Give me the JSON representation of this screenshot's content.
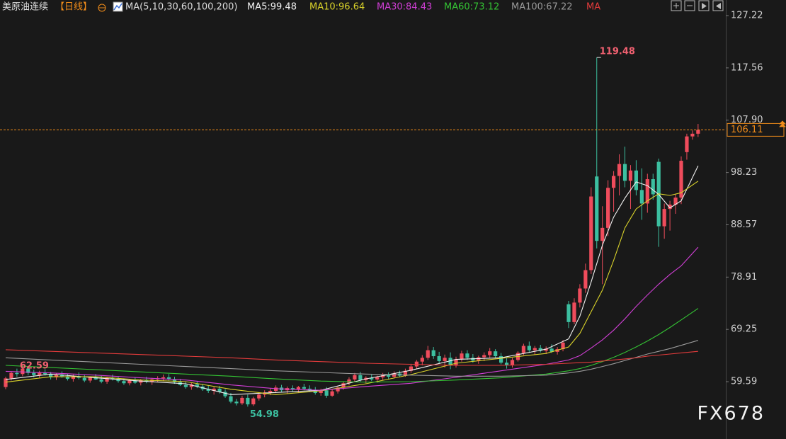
{
  "chart_data": {
    "type": "candlestick",
    "title": "美原油连续",
    "period": "【日线】",
    "ma_params": "MA(5,10,30,60,100,200)",
    "watermark": "FX678",
    "up_color": "#ef4c5c",
    "down_color": "#3cbfa0",
    "ylim": [
      49.0,
      130.1
    ],
    "yticks": [
      127.22,
      117.56,
      {
        "value": 107.9,
        "label": "107.90"
      },
      98.23,
      88.57,
      78.91,
      69.25,
      59.59
    ],
    "candles": [
      [
        58.6,
        60.5,
        58.2,
        60.2
      ],
      [
        60.2,
        61.5,
        59.8,
        61.2
      ],
      [
        61.2,
        62.0,
        60.5,
        61.0
      ],
      [
        61.0,
        62.59,
        60.6,
        62.0
      ],
      [
        62.0,
        62.3,
        60.8,
        61.2
      ],
      [
        61.2,
        61.8,
        60.4,
        60.8
      ],
      [
        60.8,
        61.6,
        60.2,
        61.3
      ],
      [
        61.3,
        61.9,
        60.7,
        61.0
      ],
      [
        61.0,
        61.4,
        60.0,
        60.4
      ],
      [
        60.4,
        61.2,
        59.9,
        60.9
      ],
      [
        60.9,
        61.5,
        60.3,
        60.6
      ],
      [
        60.6,
        61.0,
        59.8,
        60.1
      ],
      [
        60.1,
        60.9,
        59.6,
        60.6
      ],
      [
        60.6,
        61.3,
        60.0,
        60.3
      ],
      [
        60.3,
        60.8,
        59.5,
        59.8
      ],
      [
        59.8,
        60.6,
        59.4,
        60.4
      ],
      [
        60.4,
        61.0,
        59.9,
        60.0
      ],
      [
        60.0,
        60.7,
        59.3,
        59.6
      ],
      [
        59.6,
        60.5,
        59.2,
        60.3
      ],
      [
        60.3,
        60.9,
        59.8,
        60.1
      ],
      [
        60.1,
        60.6,
        59.4,
        59.7
      ],
      [
        59.7,
        60.2,
        59.0,
        59.3
      ],
      [
        59.3,
        60.0,
        58.9,
        59.8
      ],
      [
        59.8,
        60.4,
        59.2,
        59.4
      ],
      [
        59.4,
        60.1,
        58.9,
        59.9
      ],
      [
        59.9,
        60.5,
        59.3,
        59.6
      ],
      [
        59.6,
        60.3,
        59.0,
        60.0
      ],
      [
        60.0,
        60.6,
        59.5,
        60.2
      ],
      [
        60.2,
        60.9,
        59.7,
        60.4
      ],
      [
        60.4,
        61.0,
        59.8,
        60.0
      ],
      [
        60.0,
        60.5,
        59.2,
        59.5
      ],
      [
        59.5,
        60.1,
        58.8,
        59.0
      ],
      [
        59.0,
        59.6,
        58.3,
        58.6
      ],
      [
        58.6,
        59.4,
        58.1,
        59.1
      ],
      [
        59.1,
        59.6,
        58.4,
        58.7
      ],
      [
        58.7,
        59.2,
        57.9,
        58.2
      ],
      [
        58.2,
        58.9,
        57.5,
        57.9
      ],
      [
        57.9,
        58.6,
        57.2,
        58.3
      ],
      [
        58.3,
        58.8,
        57.4,
        57.7
      ],
      [
        57.7,
        58.2,
        56.6,
        56.9
      ],
      [
        56.9,
        57.5,
        55.6,
        55.9
      ],
      [
        55.9,
        56.4,
        55.2,
        55.6
      ],
      [
        55.6,
        57.0,
        55.3,
        56.6
      ],
      [
        56.6,
        57.2,
        54.98,
        55.4
      ],
      [
        55.4,
        56.8,
        55.1,
        56.5
      ],
      [
        56.5,
        57.6,
        56.1,
        57.2
      ],
      [
        57.2,
        58.0,
        56.7,
        57.6
      ],
      [
        57.6,
        58.4,
        57.1,
        57.9
      ],
      [
        57.9,
        58.9,
        57.5,
        58.5
      ],
      [
        58.5,
        59.0,
        57.7,
        58.0
      ],
      [
        58.0,
        58.7,
        57.4,
        58.4
      ],
      [
        58.4,
        58.9,
        57.8,
        58.1
      ],
      [
        58.1,
        58.8,
        57.6,
        58.6
      ],
      [
        58.6,
        59.2,
        58.0,
        58.3
      ],
      [
        58.3,
        58.9,
        57.7,
        58.0
      ],
      [
        58.0,
        58.6,
        57.2,
        57.5
      ],
      [
        57.5,
        58.3,
        57.0,
        58.0
      ],
      [
        58.0,
        58.6,
        56.6,
        57.0
      ],
      [
        57.0,
        58.1,
        56.8,
        57.8
      ],
      [
        57.8,
        58.7,
        57.4,
        58.5
      ],
      [
        58.5,
        59.6,
        58.1,
        59.3
      ],
      [
        59.3,
        60.4,
        58.9,
        60.0
      ],
      [
        60.0,
        61.2,
        59.5,
        60.8
      ],
      [
        60.8,
        61.4,
        59.6,
        59.9
      ],
      [
        59.9,
        60.6,
        59.3,
        60.3
      ],
      [
        60.3,
        61.0,
        59.7,
        60.0
      ],
      [
        60.0,
        60.7,
        59.4,
        60.4
      ],
      [
        60.4,
        61.2,
        59.9,
        60.8
      ],
      [
        60.8,
        61.3,
        60.1,
        60.5
      ],
      [
        60.5,
        61.5,
        60.2,
        61.1
      ],
      [
        61.1,
        61.6,
        60.4,
        60.7
      ],
      [
        60.7,
        62.0,
        60.5,
        61.6
      ],
      [
        61.6,
        62.9,
        61.2,
        62.4
      ],
      [
        62.4,
        63.6,
        62.0,
        63.3
      ],
      [
        63.3,
        64.5,
        62.6,
        64.0
      ],
      [
        64.0,
        66.2,
        63.6,
        65.4
      ],
      [
        65.4,
        66.0,
        63.8,
        64.3
      ],
      [
        64.3,
        65.1,
        62.9,
        63.4
      ],
      [
        63.4,
        64.6,
        62.2,
        64.0
      ],
      [
        64.0,
        65.0,
        61.9,
        62.6
      ],
      [
        62.6,
        64.2,
        62.2,
        63.7
      ],
      [
        63.7,
        65.3,
        63.3,
        64.8
      ],
      [
        64.8,
        65.4,
        63.6,
        64.0
      ],
      [
        64.0,
        64.7,
        63.1,
        63.5
      ],
      [
        63.5,
        64.4,
        62.9,
        64.1
      ],
      [
        64.1,
        65.0,
        63.4,
        64.5
      ],
      [
        64.5,
        65.8,
        64.0,
        65.2
      ],
      [
        65.2,
        65.6,
        63.9,
        64.3
      ],
      [
        64.3,
        64.9,
        62.8,
        63.1
      ],
      [
        63.1,
        63.9,
        62.0,
        62.6
      ],
      [
        62.6,
        64.0,
        62.2,
        63.6
      ],
      [
        63.6,
        65.2,
        63.3,
        64.9
      ],
      [
        64.9,
        66.6,
        64.5,
        66.2
      ],
      [
        66.2,
        67.0,
        65.0,
        65.4
      ],
      [
        65.4,
        66.2,
        64.6,
        65.8
      ],
      [
        65.8,
        66.4,
        65.0,
        65.3
      ],
      [
        65.3,
        66.1,
        64.7,
        65.7
      ],
      [
        65.7,
        66.5,
        64.9,
        65.1
      ],
      [
        65.1,
        66.0,
        64.6,
        65.6
      ],
      [
        65.6,
        67.3,
        65.2,
        66.8
      ],
      [
        73.9,
        74.5,
        69.5,
        70.6
      ],
      [
        70.6,
        75.0,
        70.2,
        74.2
      ],
      [
        74.2,
        77.6,
        73.3,
        76.8
      ],
      [
        76.8,
        81.4,
        76.0,
        80.2
      ],
      [
        80.2,
        95.5,
        79.5,
        93.8
      ],
      [
        97.5,
        119.48,
        84.2,
        85.6
      ],
      [
        85.6,
        92.0,
        77.6,
        88.0
      ],
      [
        88.0,
        96.8,
        86.5,
        95.4
      ],
      [
        95.4,
        98.5,
        91.0,
        97.6
      ],
      [
        97.6,
        101.6,
        94.0,
        99.8
      ],
      [
        99.8,
        103.0,
        95.5,
        96.7
      ],
      [
        96.7,
        99.6,
        91.5,
        98.6
      ],
      [
        98.6,
        100.5,
        94.0,
        95.0
      ],
      [
        95.0,
        99.0,
        89.5,
        92.5
      ],
      [
        92.5,
        98.0,
        90.8,
        97.0
      ],
      [
        97.0,
        98.0,
        93.2,
        94.2
      ],
      [
        100.2,
        100.8,
        84.5,
        88.3
      ],
      [
        88.3,
        92.5,
        86.0,
        91.5
      ],
      [
        91.5,
        93.0,
        87.5,
        92.3
      ],
      [
        92.3,
        94.2,
        90.6,
        93.6
      ],
      [
        93.6,
        101.2,
        92.4,
        100.4
      ],
      [
        102.0,
        105.4,
        100.6,
        104.9
      ],
      [
        104.9,
        106.0,
        104.3,
        105.4
      ],
      [
        105.4,
        107.2,
        104.8,
        106.11
      ]
    ],
    "ma_x": [
      0,
      8,
      16,
      24,
      32,
      40,
      48,
      56,
      64,
      72,
      80,
      88,
      96,
      100,
      102,
      104,
      106,
      108,
      110,
      112,
      114,
      116,
      118,
      120,
      123
    ],
    "series": [
      {
        "name": "MA5:99.48",
        "color": "#f2f2f2",
        "values": [
          60.0,
          61.0,
          60.3,
          59.7,
          59.2,
          57.2,
          57.6,
          58.0,
          60.1,
          61.7,
          63.7,
          64.0,
          65.6,
          67.5,
          71.7,
          78.0,
          84.8,
          90.0,
          93.5,
          96.5,
          95.8,
          94.2,
          91.7,
          93.0,
          99.48
        ]
      },
      {
        "name": "MA10:96.64",
        "color": "#d9d22a",
        "values": [
          59.5,
          60.5,
          60.5,
          59.9,
          59.6,
          58.2,
          57.2,
          57.9,
          59.2,
          60.9,
          63.0,
          63.9,
          64.8,
          66.0,
          68.5,
          72.5,
          76.5,
          82.0,
          88.0,
          91.5,
          93.0,
          94.3,
          94.0,
          94.5,
          96.64
        ]
      },
      {
        "name": "MA30:84.43",
        "color": "#d13fd6",
        "values": [
          61.5,
          61.2,
          60.8,
          60.3,
          59.9,
          59.0,
          58.3,
          58.0,
          58.7,
          59.3,
          60.4,
          61.6,
          62.8,
          63.6,
          64.4,
          65.8,
          67.3,
          69.1,
          71.2,
          73.5,
          75.6,
          77.6,
          79.4,
          81.0,
          84.43
        ]
      },
      {
        "name": "MA60:73.12",
        "color": "#34c434",
        "values": [
          62.6,
          62.2,
          61.8,
          61.4,
          61.0,
          60.6,
          60.1,
          59.7,
          59.5,
          59.6,
          59.9,
          60.3,
          61.0,
          61.6,
          62.0,
          62.6,
          63.3,
          64.1,
          65.0,
          66.0,
          67.1,
          68.3,
          69.6,
          71.0,
          73.12
        ]
      },
      {
        "name": "MA100:67.22",
        "color": "#9a9a9a",
        "values": [
          64.0,
          63.6,
          63.2,
          62.8,
          62.4,
          62.0,
          61.6,
          61.3,
          61.0,
          60.8,
          60.6,
          60.6,
          60.8,
          61.2,
          61.5,
          61.9,
          62.4,
          62.9,
          63.5,
          64.1,
          64.7,
          65.2,
          65.7,
          66.3,
          67.22
        ]
      },
      {
        "name": "MA",
        "color": "#e23b3b",
        "values": [
          65.5,
          65.2,
          64.9,
          64.6,
          64.3,
          64.0,
          63.6,
          63.3,
          63.0,
          62.8,
          62.6,
          62.6,
          62.8,
          63.0,
          63.1,
          63.2,
          63.4,
          63.6,
          63.8,
          64.0,
          64.3,
          64.5,
          64.7,
          64.9,
          65.2
        ]
      }
    ]
  }
}
